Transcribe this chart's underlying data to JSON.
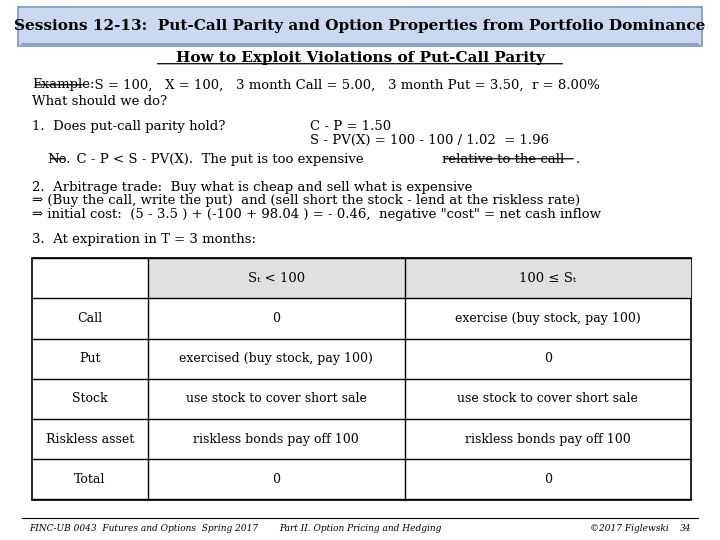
{
  "title_box": "Sessions 12-13:  Put-Call Parity and Option Properties from Portfolio Dominance",
  "title_box_bg": "#c9d9f0",
  "title_box_border": "#7f96c8",
  "subtitle": "How to Exploit Violations of Put-Call Parity",
  "bg_color": "#ffffff",
  "footer_left": "FINC-UB 0043  Futures and Options  Spring 2017",
  "footer_mid": "Part II. Option Pricing and Hedging",
  "footer_right": "©2017 Figlewski",
  "footer_page": "34",
  "table_header": [
    "",
    "Sₜ < 100",
    "100 ≤ Sₜ"
  ],
  "table_rows": [
    [
      "Call",
      "0",
      "exercise (buy stock, pay 100)"
    ],
    [
      "Put",
      "exercised (buy stock, pay 100)",
      "0"
    ],
    [
      "Stock",
      "use stock to cover short sale",
      "use stock to cover short sale"
    ],
    [
      "Riskless asset",
      "riskless bonds pay off 100",
      "riskless bonds pay off 100"
    ],
    [
      "Total",
      "0",
      "0"
    ]
  ]
}
